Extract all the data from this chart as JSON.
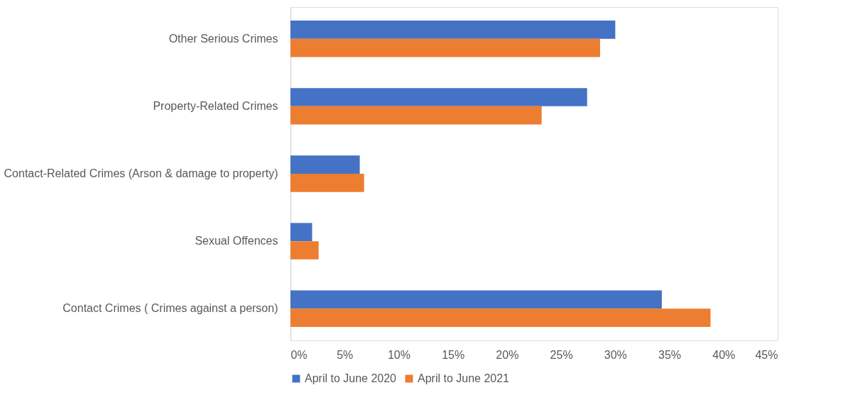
{
  "chart_data": {
    "type": "bar",
    "orientation": "horizontal",
    "categories": [
      "Other Serious Crimes",
      "Property-Related Crimes",
      "Contact-Related Crimes (Arson & damage to property)",
      "Sexual Offences",
      "Contact Crimes ( Crimes against a  person)"
    ],
    "series": [
      {
        "name": "April to June 2020",
        "color": "#4472c4",
        "values": [
          30.0,
          27.4,
          6.4,
          2.0,
          34.3
        ]
      },
      {
        "name": "April to June 2021",
        "color": "#ed7d31",
        "values": [
          28.6,
          23.2,
          6.8,
          2.6,
          38.8
        ]
      }
    ],
    "xlim": [
      0,
      45
    ],
    "xticks": [
      {
        "value": 0,
        "label": "0%"
      },
      {
        "value": 5,
        "label": "5%"
      },
      {
        "value": 10,
        "label": "10%"
      },
      {
        "value": 15,
        "label": "15%"
      },
      {
        "value": 20,
        "label": "20%"
      },
      {
        "value": 25,
        "label": "25%"
      },
      {
        "value": 30,
        "label": "30%"
      },
      {
        "value": 35,
        "label": "35%"
      },
      {
        "value": 40,
        "label": "40%"
      },
      {
        "value": 45,
        "label": "45%"
      }
    ],
    "grid": false,
    "legend": "bottom"
  }
}
